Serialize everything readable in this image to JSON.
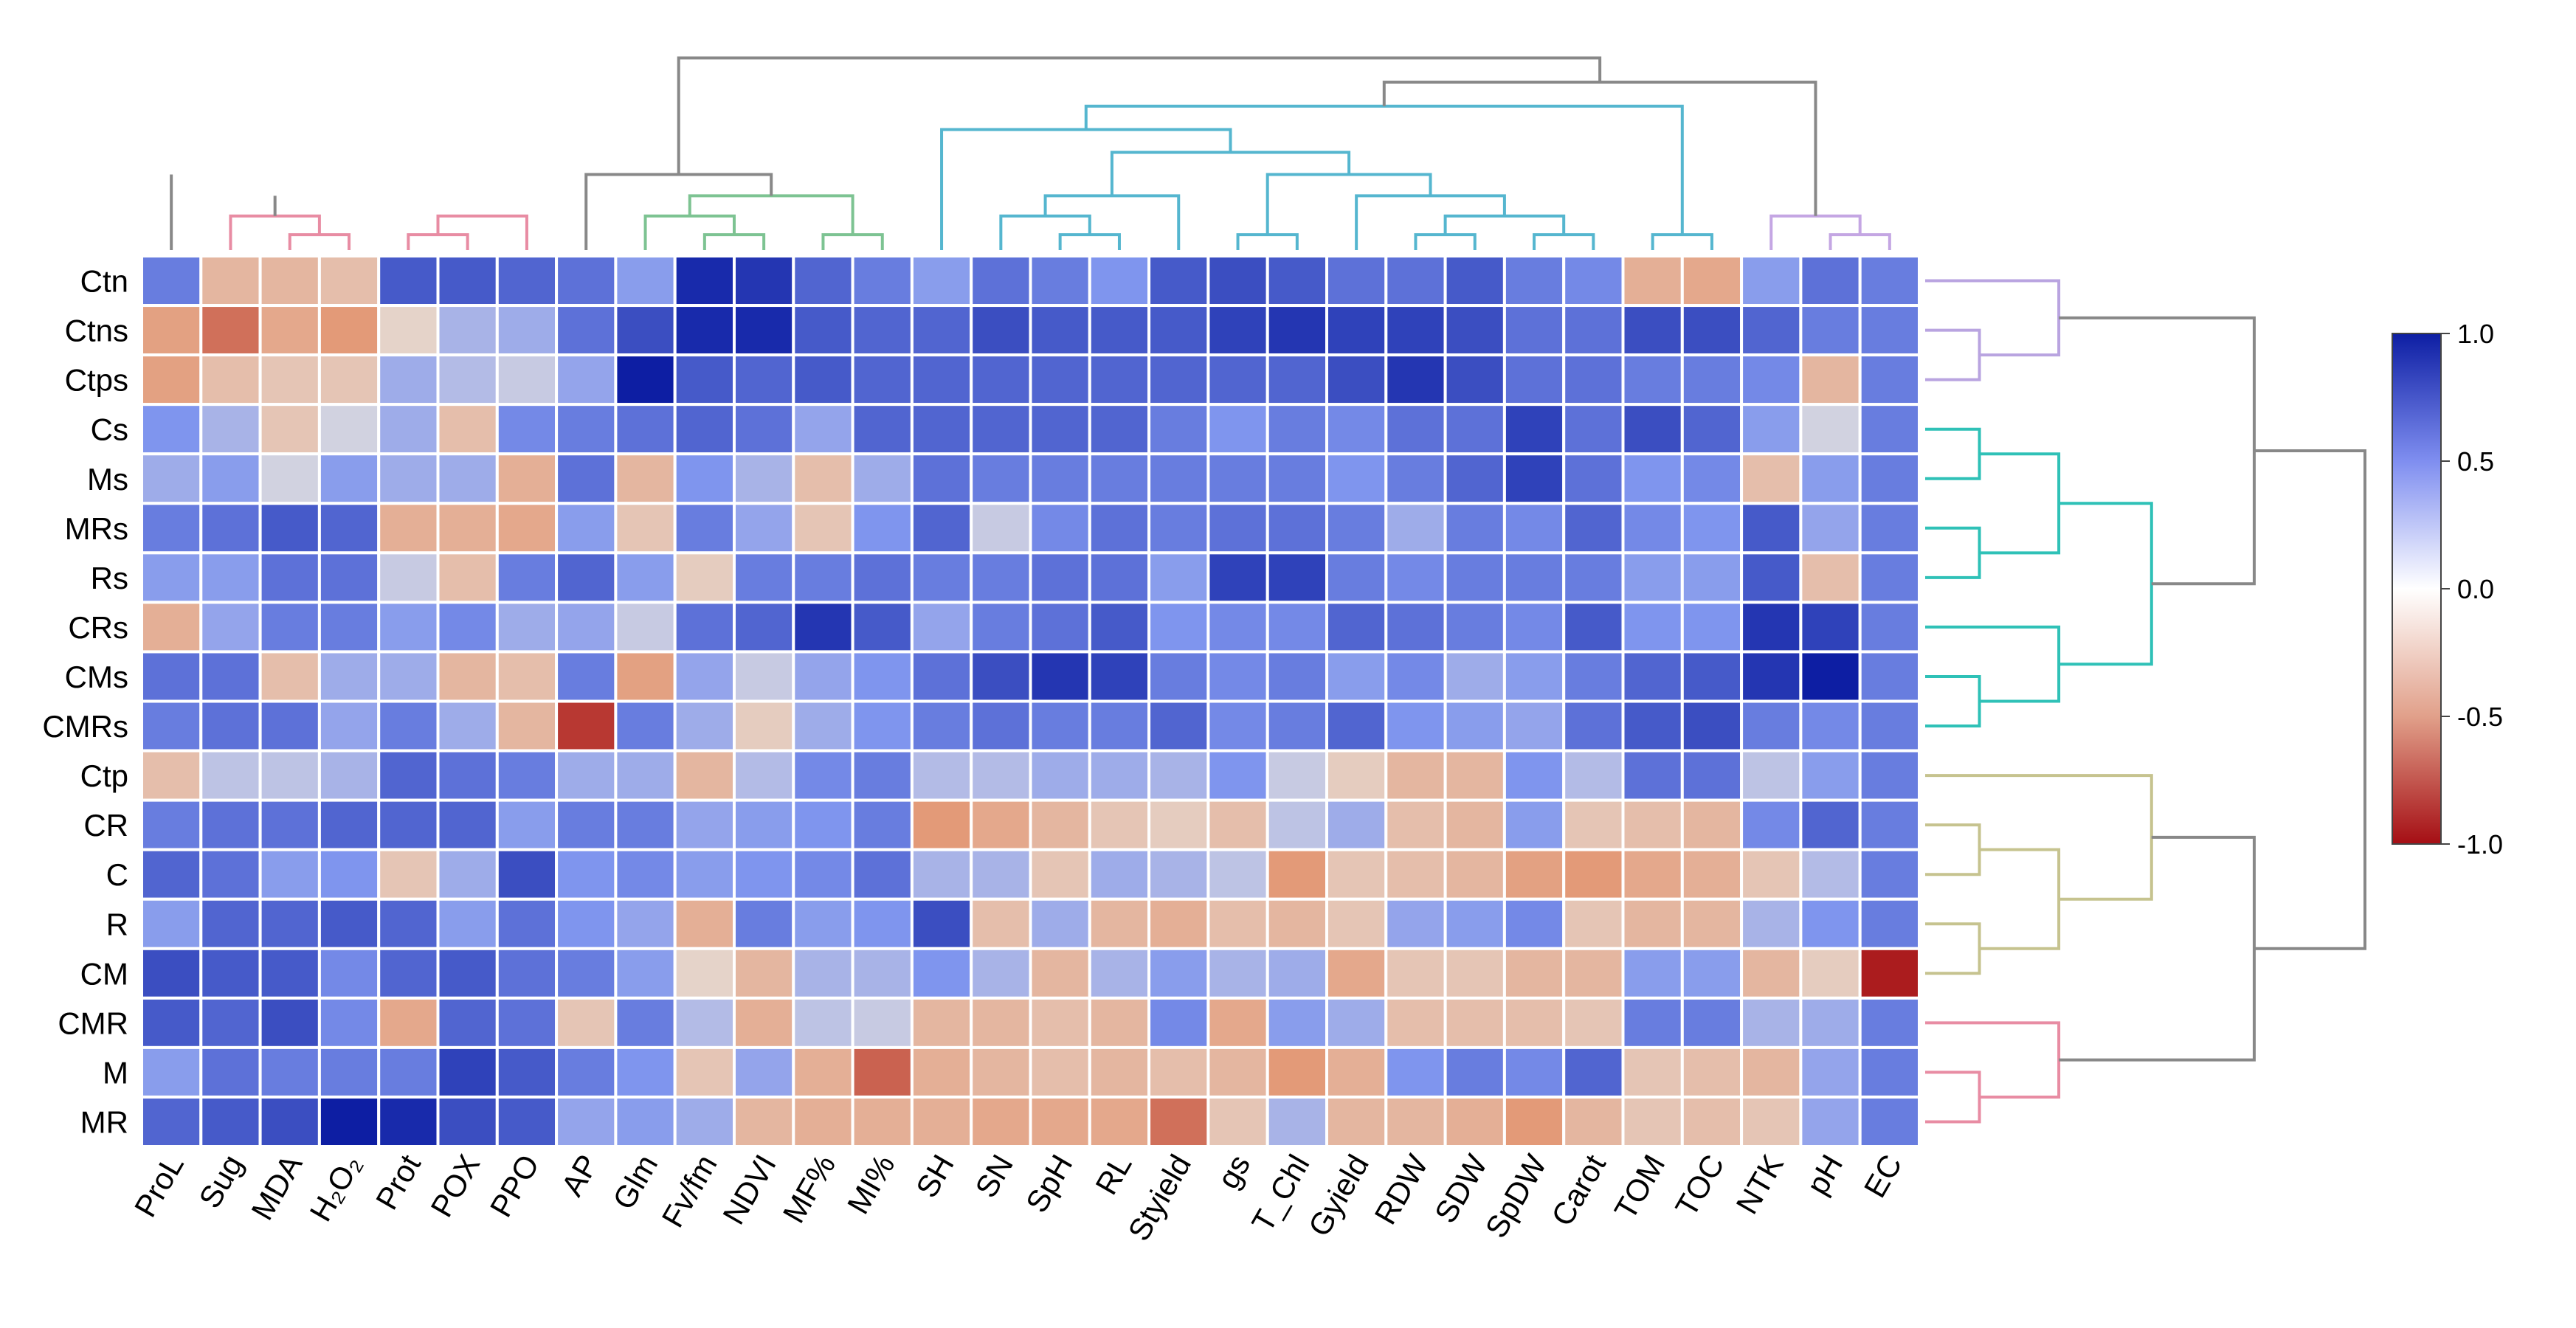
{
  "chart_data": {
    "type": "heatmap",
    "title": "",
    "rows": [
      "Ctn",
      "Ctns",
      "Ctps",
      "Cs",
      "Ms",
      "MRs",
      "Rs",
      "CRs",
      "CMs",
      "CMRs",
      "Ctp",
      "CR",
      "C",
      "R",
      "CM",
      "CMR",
      "M",
      "MR"
    ],
    "columns": [
      "ProL",
      "Sug",
      "MDA",
      "H₂O₂",
      "Prot",
      "POX",
      "PPO",
      "AP",
      "Glm",
      "Fv/fm",
      "NDVI",
      "MF%",
      "MI%",
      "SH",
      "SN",
      "SpH",
      "RL",
      "Styield",
      "gs",
      "T_Chl",
      "Gyield",
      "RDW",
      "SDW",
      "SpDW",
      "Carot",
      "TOM",
      "TOC",
      "NTK",
      "pH",
      "EC"
    ],
    "values": [
      [
        0.6,
        -0.3,
        -0.3,
        -0.25,
        0.75,
        0.75,
        0.7,
        0.65,
        0.45,
        0.95,
        0.9,
        0.7,
        0.6,
        0.45,
        0.65,
        0.6,
        0.5,
        0.75,
        0.8,
        0.75,
        0.65,
        0.65,
        0.75,
        0.6,
        0.55,
        -0.35,
        -0.4,
        0.45,
        0.65,
        0.6
      ],
      [
        -0.45,
        -0.65,
        -0.4,
        -0.5,
        -0.1,
        0.3,
        0.35,
        0.65,
        0.8,
        0.95,
        0.95,
        0.75,
        0.7,
        0.7,
        0.8,
        0.75,
        0.75,
        0.75,
        0.85,
        0.9,
        0.85,
        0.85,
        0.8,
        0.65,
        0.65,
        0.8,
        0.8,
        0.7,
        0.6,
        0.6
      ],
      [
        -0.45,
        -0.25,
        -0.2,
        -0.2,
        0.35,
        0.25,
        0.15,
        0.4,
        1.0,
        0.75,
        0.7,
        0.75,
        0.7,
        0.7,
        0.7,
        0.7,
        0.7,
        0.7,
        0.7,
        0.7,
        0.8,
        0.9,
        0.8,
        0.65,
        0.65,
        0.6,
        0.6,
        0.55,
        -0.3,
        0.6
      ],
      [
        0.5,
        0.3,
        -0.2,
        0.1,
        0.35,
        -0.25,
        0.55,
        0.6,
        0.65,
        0.7,
        0.65,
        0.4,
        0.7,
        0.7,
        0.7,
        0.7,
        0.7,
        0.6,
        0.5,
        0.6,
        0.55,
        0.65,
        0.65,
        0.85,
        0.65,
        0.8,
        0.7,
        0.45,
        0.1,
        0.6
      ],
      [
        0.35,
        0.45,
        0.1,
        0.45,
        0.35,
        0.35,
        -0.35,
        0.65,
        -0.3,
        0.5,
        0.3,
        -0.25,
        0.35,
        0.65,
        0.6,
        0.6,
        0.6,
        0.6,
        0.6,
        0.6,
        0.5,
        0.6,
        0.7,
        0.85,
        0.65,
        0.5,
        0.55,
        -0.25,
        0.45,
        0.6
      ],
      [
        0.6,
        0.65,
        0.75,
        0.7,
        -0.35,
        -0.35,
        -0.4,
        0.45,
        -0.2,
        0.6,
        0.4,
        -0.2,
        0.5,
        0.7,
        0.15,
        0.55,
        0.65,
        0.6,
        0.65,
        0.65,
        0.6,
        0.35,
        0.6,
        0.55,
        0.7,
        0.55,
        0.5,
        0.75,
        0.4,
        0.6
      ],
      [
        0.45,
        0.45,
        0.65,
        0.65,
        0.15,
        -0.25,
        0.6,
        0.7,
        0.45,
        -0.15,
        0.6,
        0.6,
        0.65,
        0.6,
        0.6,
        0.65,
        0.65,
        0.45,
        0.85,
        0.85,
        0.6,
        0.55,
        0.6,
        0.6,
        0.6,
        0.45,
        0.45,
        0.75,
        -0.25,
        0.6
      ],
      [
        -0.35,
        0.4,
        0.6,
        0.6,
        0.45,
        0.55,
        0.35,
        0.4,
        0.15,
        0.65,
        0.7,
        0.9,
        0.75,
        0.4,
        0.6,
        0.65,
        0.75,
        0.5,
        0.55,
        0.55,
        0.7,
        0.65,
        0.6,
        0.55,
        0.75,
        0.5,
        0.5,
        0.9,
        0.85,
        0.6
      ],
      [
        0.65,
        0.65,
        -0.25,
        0.35,
        0.35,
        -0.3,
        -0.25,
        0.6,
        -0.45,
        0.4,
        0.15,
        0.4,
        0.5,
        0.65,
        0.8,
        0.9,
        0.85,
        0.6,
        0.55,
        0.6,
        0.45,
        0.55,
        0.35,
        0.45,
        0.6,
        0.7,
        0.75,
        0.9,
        1.0,
        0.6
      ],
      [
        0.6,
        0.65,
        0.65,
        0.4,
        0.6,
        0.35,
        -0.3,
        -0.85,
        0.6,
        0.35,
        -0.15,
        0.35,
        0.5,
        0.6,
        0.65,
        0.6,
        0.6,
        0.7,
        0.55,
        0.6,
        0.7,
        0.5,
        0.45,
        0.4,
        0.65,
        0.75,
        0.8,
        0.6,
        0.55,
        0.6
      ],
      [
        -0.25,
        0.2,
        0.2,
        0.3,
        0.7,
        0.65,
        0.6,
        0.35,
        0.35,
        -0.3,
        0.25,
        0.55,
        0.6,
        0.25,
        0.25,
        0.35,
        0.35,
        0.3,
        0.5,
        0.15,
        -0.15,
        -0.3,
        -0.3,
        0.5,
        0.25,
        0.65,
        0.65,
        0.2,
        0.45,
        0.6
      ],
      [
        0.6,
        0.65,
        0.65,
        0.7,
        0.7,
        0.7,
        0.45,
        0.6,
        0.6,
        0.4,
        0.45,
        0.5,
        0.6,
        -0.5,
        -0.4,
        -0.3,
        -0.2,
        -0.15,
        -0.25,
        0.2,
        0.35,
        -0.25,
        -0.3,
        0.45,
        -0.2,
        -0.25,
        -0.3,
        0.55,
        0.7,
        0.6
      ],
      [
        0.7,
        0.65,
        0.45,
        0.5,
        -0.2,
        0.35,
        0.8,
        0.5,
        0.55,
        0.45,
        0.5,
        0.55,
        0.65,
        0.3,
        0.3,
        -0.2,
        0.35,
        0.3,
        0.2,
        -0.5,
        -0.2,
        -0.25,
        -0.3,
        -0.45,
        -0.5,
        -0.4,
        -0.35,
        -0.2,
        0.25,
        0.6
      ],
      [
        0.45,
        0.7,
        0.7,
        0.75,
        0.7,
        0.45,
        0.65,
        0.5,
        0.4,
        -0.35,
        0.6,
        0.45,
        0.5,
        0.8,
        -0.25,
        0.35,
        -0.3,
        -0.35,
        -0.25,
        -0.3,
        -0.2,
        0.4,
        0.45,
        0.55,
        -0.2,
        -0.3,
        -0.3,
        0.3,
        0.5,
        0.6
      ],
      [
        0.8,
        0.75,
        0.75,
        0.55,
        0.7,
        0.75,
        0.65,
        0.6,
        0.45,
        -0.1,
        -0.3,
        0.3,
        0.3,
        0.5,
        0.3,
        -0.3,
        0.3,
        0.45,
        0.3,
        0.35,
        -0.4,
        -0.2,
        -0.2,
        -0.3,
        -0.3,
        0.45,
        0.45,
        -0.3,
        -0.15,
        -0.95
      ],
      [
        0.75,
        0.7,
        0.8,
        0.55,
        -0.4,
        0.7,
        0.65,
        -0.2,
        0.6,
        0.25,
        -0.35,
        0.2,
        0.15,
        -0.3,
        -0.3,
        -0.25,
        -0.3,
        0.55,
        -0.4,
        0.45,
        0.35,
        -0.25,
        -0.25,
        -0.25,
        -0.2,
        0.6,
        0.6,
        0.3,
        0.35,
        0.6
      ],
      [
        0.45,
        0.65,
        0.6,
        0.6,
        0.6,
        0.85,
        0.75,
        0.6,
        0.5,
        -0.2,
        0.4,
        -0.35,
        -0.7,
        -0.35,
        -0.3,
        -0.25,
        -0.3,
        -0.25,
        -0.3,
        -0.5,
        -0.35,
        0.5,
        0.6,
        0.55,
        0.7,
        -0.2,
        -0.25,
        -0.3,
        0.4,
        0.6
      ],
      [
        0.7,
        0.75,
        0.8,
        1.0,
        0.95,
        0.8,
        0.75,
        0.4,
        0.45,
        0.35,
        -0.3,
        -0.35,
        -0.35,
        -0.35,
        -0.4,
        -0.4,
        -0.4,
        -0.65,
        -0.2,
        0.3,
        -0.3,
        -0.3,
        -0.35,
        -0.5,
        -0.3,
        -0.2,
        -0.25,
        -0.2,
        0.4,
        0.6
      ]
    ],
    "colorbar": {
      "range": [
        -1.0,
        1.0
      ],
      "ticks": [
        "1.0",
        "0.5",
        "0.0",
        "-0.5",
        "-1.0"
      ],
      "colors": {
        "high": "#0d1ea3",
        "mid_high": "#5f78f2",
        "zero": "#ffffff",
        "mid_low": "#e8a07a",
        "low": "#a50e14"
      }
    },
    "column_dendrogram": {
      "clusters": [
        {
          "color": "#e88ca3",
          "members": [
            "ProL",
            "Sug",
            "MDA",
            "H₂O₂",
            "Prot",
            "POX",
            "PPO"
          ]
        },
        {
          "color": "#c9a873",
          "members": [
            "AP"
          ]
        },
        {
          "color": "#7dc392",
          "members": [
            "Glm",
            "Fv/fm",
            "NDVI",
            "MF%",
            "MI%"
          ]
        },
        {
          "color": "#55b6cf",
          "members": [
            "SH",
            "SN",
            "SpH",
            "RL",
            "Styield",
            "gs",
            "T_Chl",
            "Gyield",
            "RDW",
            "SDW",
            "SpDW",
            "Carot",
            "TOM",
            "TOC"
          ]
        },
        {
          "color": "#c4a6e3",
          "members": [
            "NTK",
            "pH",
            "EC"
          ]
        }
      ],
      "link_color": "#888888"
    },
    "row_dendrogram": {
      "clusters": [
        {
          "color": "#b9a4e0",
          "members": [
            "Ctn",
            "Ctns",
            "Ctps"
          ]
        },
        {
          "color": "#2fc1b7",
          "members": [
            "Cs",
            "Ms",
            "MRs",
            "Rs",
            "CRs",
            "CMs",
            "CMRs"
          ]
        },
        {
          "color": "#c6c38f",
          "members": [
            "Ctp",
            "CR",
            "C",
            "R",
            "CM"
          ]
        },
        {
          "color": "#e88ca3",
          "members": [
            "CMR",
            "M",
            "MR"
          ]
        }
      ],
      "link_color": "#888888"
    }
  }
}
